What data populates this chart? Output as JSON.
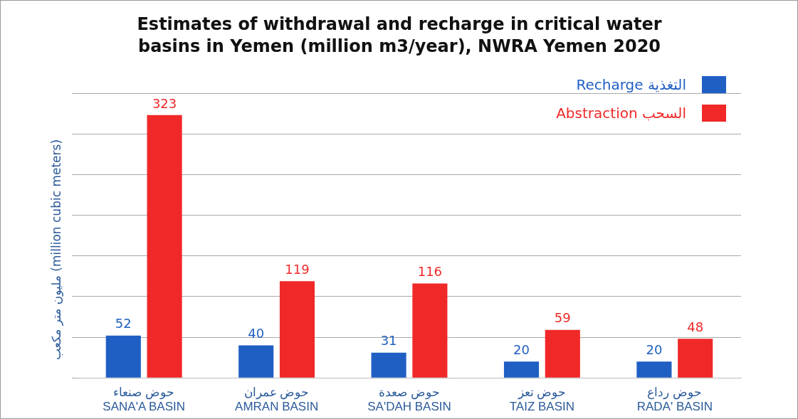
{
  "chart_data": {
    "type": "bar",
    "title": "Estimates of withdrawal and recharge in critical water basins in Yemen (million m3/year), NWRA Yemen 2020",
    "ylabel": "مليون متر مكعب (million cubic meters)",
    "categories": [
      "حوض صنعاء\nSANA'A BASIN",
      "حوض عمران\nAMRAN BASIN",
      "حوض صعدة\nSA'DAH BASIN",
      "حوض تعز\nTAIZ BASIN",
      "حوض رداع\nRADA' BASIN"
    ],
    "series": [
      {
        "name": "Recharge التغذية",
        "color": "#1f5fc4",
        "values": [
          52,
          40,
          31,
          20,
          20
        ]
      },
      {
        "name": "Abstraction السحب",
        "color": "#f02828",
        "values": [
          323,
          119,
          116,
          59,
          48
        ]
      }
    ],
    "ylim": [
      0,
      350
    ],
    "yticks": [
      {
        "value": 0,
        "label": null
      },
      {
        "value": 50,
        "label": null
      },
      {
        "value": 100,
        "label": null
      },
      {
        "value": 150,
        "label": null
      },
      {
        "value": 200,
        "label": null
      },
      {
        "value": 250,
        "label": null
      },
      {
        "value": 300,
        "label": null
      },
      {
        "value": 350,
        "label": null
      }
    ],
    "tick_labels": "x",
    "grid": "y",
    "legend": "top right",
    "data_labels": true
  }
}
